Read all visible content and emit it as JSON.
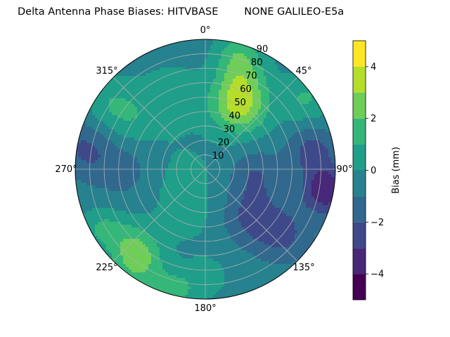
{
  "chart_data": {
    "type": "heatmap",
    "projection": "polar",
    "title": "Delta Antenna Phase Biases: HITVBASE        NONE GALILEO-E5a",
    "azimuth_ticks": [
      "0°",
      "45°",
      "90°",
      "135°",
      "180°",
      "225°",
      "270°",
      "315°"
    ],
    "zenith_ticks": [
      "10",
      "20",
      "30",
      "40",
      "50",
      "60",
      "70",
      "80",
      "90"
    ],
    "zenith_range": [
      0,
      90
    ],
    "grid": true,
    "colorbar": {
      "label": "Bias (mm)",
      "range": [
        -5,
        5
      ],
      "ticks": [
        "4",
        "2",
        "0",
        "−2",
        "−4"
      ],
      "levels": [
        -5,
        -4,
        -3,
        -2,
        -1,
        0,
        1,
        2,
        3,
        4,
        5
      ],
      "colors": [
        "#440154",
        "#482878",
        "#3e4989",
        "#31688e",
        "#26828e",
        "#1f9e89",
        "#35b779",
        "#6ece58",
        "#b5de2b",
        "#fde725"
      ]
    },
    "field": {
      "base_bias": -0.4,
      "features": [
        {
          "azimuth": 28,
          "zenith": 50,
          "bias": 3.8,
          "spread": 14
        },
        {
          "azimuth": 20,
          "zenith": 72,
          "bias": 2.0,
          "spread": 12
        },
        {
          "azimuth": 55,
          "zenith": 85,
          "bias": 1.5,
          "spread": 12
        },
        {
          "azimuth": 15,
          "zenith": 86,
          "bias": 1.2,
          "spread": 10
        },
        {
          "azimuth": 300,
          "zenith": 60,
          "bias": 1.4,
          "spread": 16
        },
        {
          "azimuth": 335,
          "zenith": 55,
          "bias": 1.2,
          "spread": 14
        },
        {
          "azimuth": 305,
          "zenith": 80,
          "bias": 1.0,
          "spread": 12
        },
        {
          "azimuth": 275,
          "zenith": 55,
          "bias": -1.3,
          "spread": 18
        },
        {
          "azimuth": 280,
          "zenith": 85,
          "bias": -1.6,
          "spread": 14
        },
        {
          "azimuth": 100,
          "zenith": 85,
          "bias": -3.4,
          "spread": 12
        },
        {
          "azimuth": 80,
          "zenith": 75,
          "bias": -2.0,
          "spread": 12
        },
        {
          "azimuth": 130,
          "zenith": 70,
          "bias": -1.8,
          "spread": 14
        },
        {
          "azimuth": 135,
          "zenith": 45,
          "bias": -1.8,
          "spread": 14
        },
        {
          "azimuth": 95,
          "zenith": 35,
          "bias": -1.5,
          "spread": 12
        },
        {
          "azimuth": 250,
          "zenith": 20,
          "bias": 0.8,
          "spread": 18
        },
        {
          "azimuth": 200,
          "zenith": 35,
          "bias": 0.6,
          "spread": 14
        },
        {
          "azimuth": 215,
          "zenith": 80,
          "bias": 2.3,
          "spread": 12
        },
        {
          "azimuth": 225,
          "zenith": 72,
          "bias": 1.6,
          "spread": 12
        },
        {
          "azimuth": 195,
          "zenith": 88,
          "bias": 2.0,
          "spread": 10
        },
        {
          "azimuth": 240,
          "zenith": 82,
          "bias": 1.5,
          "spread": 10
        },
        {
          "azimuth": 180,
          "zenith": 75,
          "bias": 1.0,
          "spread": 10
        }
      ]
    }
  }
}
